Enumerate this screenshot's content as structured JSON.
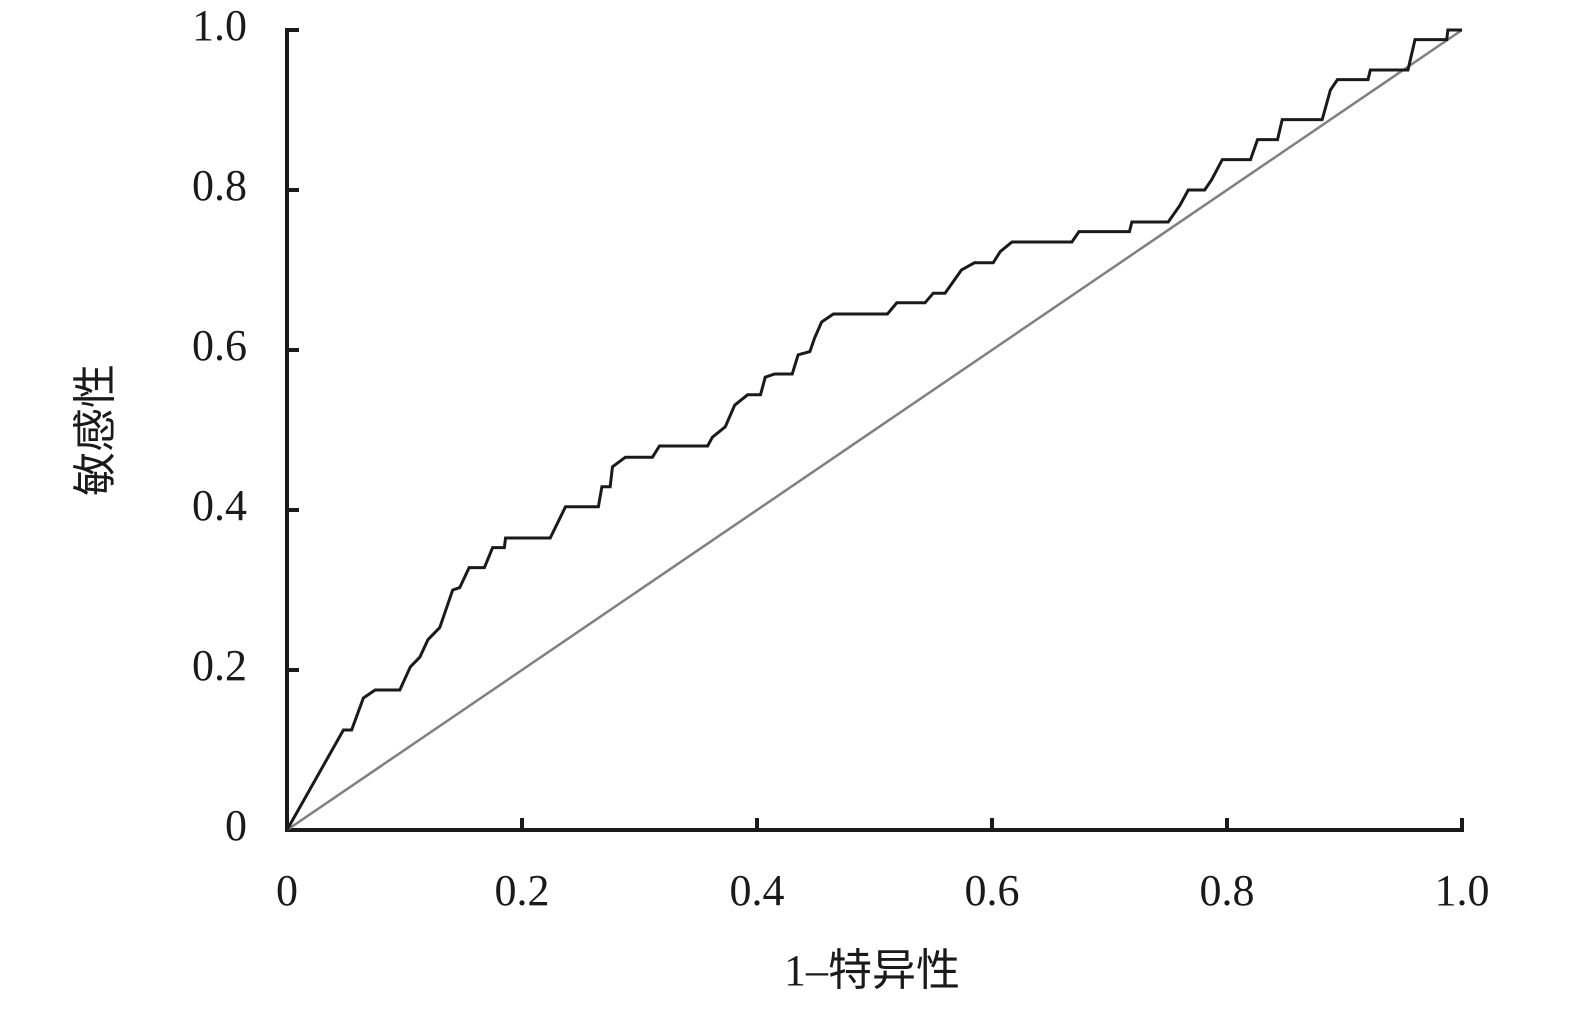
{
  "chart_data": {
    "type": "line",
    "xlabel": "1–特异性",
    "ylabel": "敏感性",
    "xlim": [
      0,
      1
    ],
    "ylim": [
      0,
      1
    ],
    "xticks": [
      0,
      0.2,
      0.4,
      0.6,
      0.8,
      {
        "value": 1,
        "label": "1.0"
      }
    ],
    "yticks": [
      0,
      0.2,
      0.4,
      0.6,
      0.8,
      {
        "value": 1,
        "label": "1.0"
      }
    ],
    "grid": false,
    "series": [
      {
        "color": "#1a1a1a",
        "x": [
          0,
          0.048,
          0.055,
          0.065,
          0.075,
          0.096,
          0.105,
          0.113,
          0.12,
          0.13,
          0.141,
          0.147,
          0.155,
          0.168,
          0.175,
          0.185,
          0.186,
          0.224,
          0.237,
          0.265,
          0.268,
          0.275,
          0.277,
          0.288,
          0.311,
          0.317,
          0.358,
          0.362,
          0.373,
          0.381,
          0.392,
          0.403,
          0.407,
          0.415,
          0.43,
          0.435,
          0.445,
          0.449,
          0.455,
          0.465,
          0.511,
          0.519,
          0.543,
          0.55,
          0.56,
          0.574,
          0.585,
          0.601,
          0.607,
          0.617,
          0.668,
          0.674,
          0.717,
          0.719,
          0.75,
          0.76,
          0.767,
          0.781,
          0.787,
          0.796,
          0.82,
          0.826,
          0.843,
          0.847,
          0.881,
          0.888,
          0.894,
          0.92,
          0.922,
          0.954,
          0.96,
          0.987,
          0.988,
          1
        ],
        "values": [
          0,
          0.125,
          0.125,
          0.165,
          0.175,
          0.175,
          0.204,
          0.216,
          0.238,
          0.253,
          0.3,
          0.303,
          0.328,
          0.328,
          0.353,
          0.353,
          0.365,
          0.365,
          0.404,
          0.404,
          0.429,
          0.429,
          0.454,
          0.466,
          0.466,
          0.48,
          0.48,
          0.491,
          0.504,
          0.531,
          0.544,
          0.544,
          0.566,
          0.57,
          0.57,
          0.594,
          0.598,
          0.615,
          0.635,
          0.645,
          0.645,
          0.659,
          0.659,
          0.671,
          0.671,
          0.7,
          0.709,
          0.709,
          0.723,
          0.735,
          0.735,
          0.748,
          0.748,
          0.76,
          0.76,
          0.781,
          0.8,
          0.8,
          0.813,
          0.838,
          0.838,
          0.863,
          0.863,
          0.888,
          0.888,
          0.925,
          0.938,
          0.938,
          0.95,
          0.95,
          0.988,
          0.988,
          1,
          1
        ]
      },
      {
        "color": "#808080",
        "x": [
          0,
          1
        ],
        "values": [
          0,
          1
        ]
      }
    ]
  }
}
